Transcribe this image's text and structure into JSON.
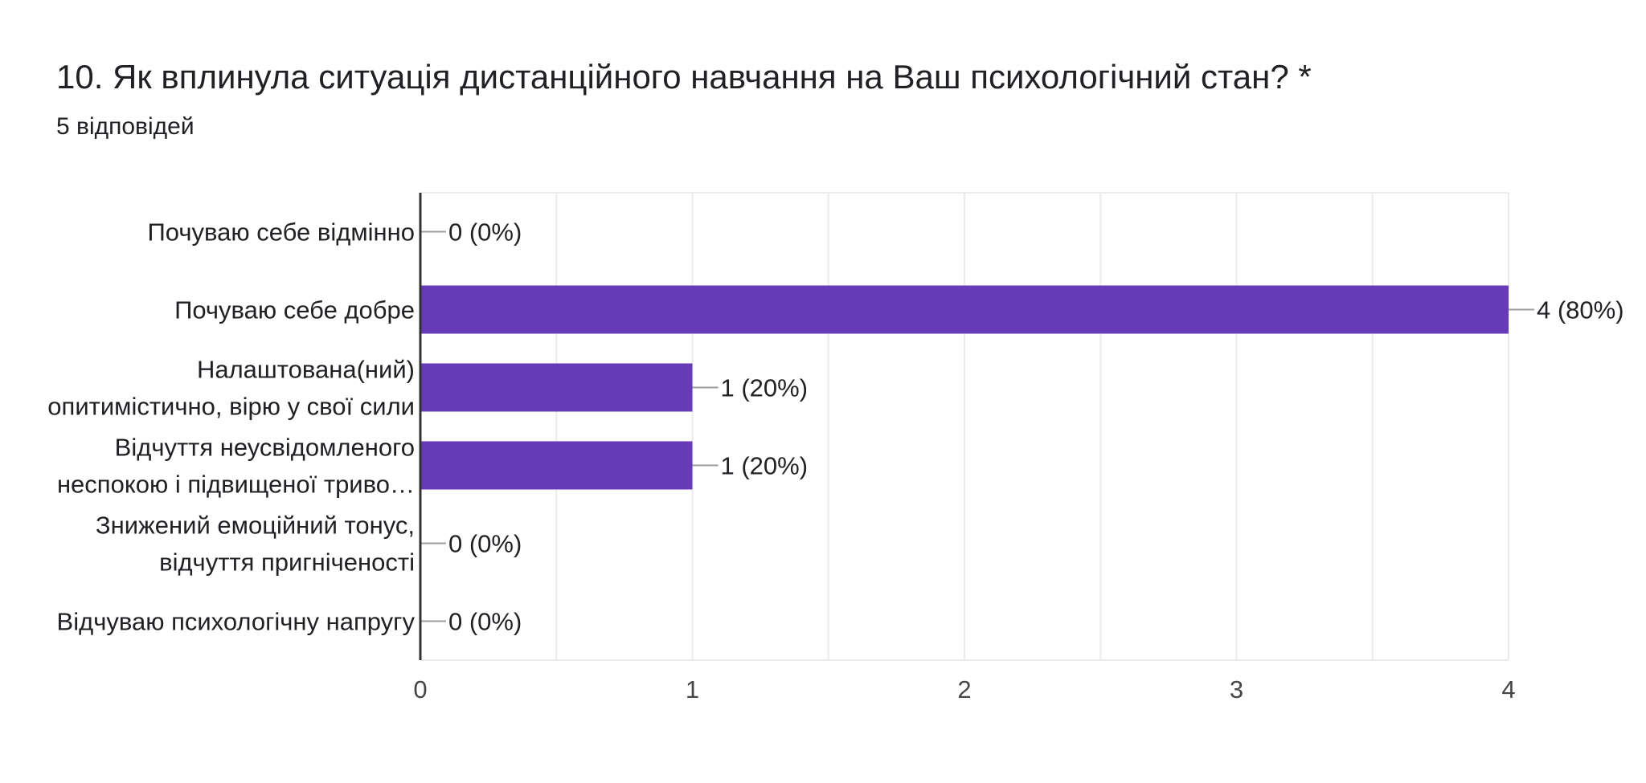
{
  "question": {
    "title": "10. Як вплинула ситуація дистанційного навчання на Ваш психологічний стан? *",
    "responses": "5 відповідей"
  },
  "colors": {
    "bar": "#673ab7",
    "grid": "#ebebeb",
    "axis": "#333333",
    "leader": "#9e9e9e"
  },
  "chart_data": {
    "type": "bar",
    "orientation": "horizontal",
    "title": "10. Як вплинула ситуація дистанційного навчання на Ваш психологічний стан? *",
    "xlabel": "",
    "ylabel": "",
    "xlim": [
      0,
      4
    ],
    "ticks": [
      0,
      1,
      2,
      3,
      4
    ],
    "grid": true,
    "categories": [
      [
        "Почуваю себе відмінно"
      ],
      [
        "Почуваю себе добре"
      ],
      [
        "Налаштована(ний)",
        "опитимістично, вірю у свої сили"
      ],
      [
        "Відчуття неусвідомленого",
        "неспокою і підвищеної триво…"
      ],
      [
        "Знижений емоційний тонус,",
        "відчуття пригніченості"
      ],
      [
        "Відчуваю психологічну напругу"
      ]
    ],
    "values": [
      0,
      4,
      1,
      1,
      0,
      0
    ],
    "value_labels": [
      "0 (0%)",
      "4 (80%)",
      "1 (20%)",
      "1 (20%)",
      "0 (0%)",
      "0 (0%)"
    ]
  }
}
